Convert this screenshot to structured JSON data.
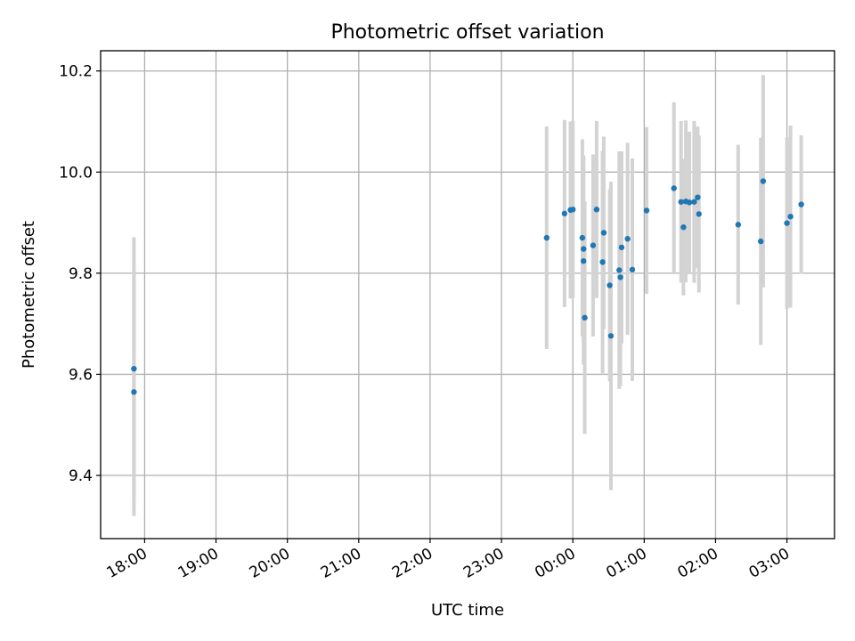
{
  "chart_data": {
    "type": "scatter",
    "title": "Photometric offset variation",
    "xlabel": "UTC time",
    "ylabel": "Photometric offset",
    "x_unit": "time (UTC)",
    "xlim": [
      "17:23",
      "03:40"
    ],
    "ylim": [
      9.275,
      10.24
    ],
    "grid": true,
    "x_ticks": [
      "18:00",
      "19:00",
      "20:00",
      "21:00",
      "22:00",
      "23:00",
      "00:00",
      "01:00",
      "02:00",
      "03:00"
    ],
    "y_ticks": [
      "9.4",
      "9.6",
      "9.8",
      "10.0",
      "10.2"
    ],
    "point_color": "#1f77b4",
    "errorbar_color": "#d3d3d3",
    "series": [
      {
        "points": [
          {
            "t": "17:51",
            "y": 9.611,
            "err": 0.26
          },
          {
            "t": "17:51",
            "y": 9.565,
            "err": 0.245
          },
          {
            "t": "23:38",
            "y": 9.87,
            "err": 0.22
          },
          {
            "t": "23:53",
            "y": 9.918,
            "err": 0.185
          },
          {
            "t": "23:58",
            "y": 9.925,
            "err": 0.175
          },
          {
            "t": "00:00",
            "y": 9.926,
            "err": 0.175
          },
          {
            "t": "00:08",
            "y": 9.87,
            "err": 0.195
          },
          {
            "t": "00:09",
            "y": 9.848,
            "err": 0.185
          },
          {
            "t": "00:09",
            "y": 9.824,
            "err": 0.205
          },
          {
            "t": "00:10",
            "y": 9.712,
            "err": 0.23
          },
          {
            "t": "00:17",
            "y": 9.855,
            "err": 0.18
          },
          {
            "t": "00:20",
            "y": 9.926,
            "err": 0.175
          },
          {
            "t": "00:25",
            "y": 9.822,
            "err": 0.22
          },
          {
            "t": "00:26",
            "y": 9.88,
            "err": 0.19
          },
          {
            "t": "00:31",
            "y": 9.776,
            "err": 0.19
          },
          {
            "t": "00:32",
            "y": 9.676,
            "err": 0.305
          },
          {
            "t": "00:39",
            "y": 9.806,
            "err": 0.235
          },
          {
            "t": "00:40",
            "y": 9.792,
            "err": 0.215
          },
          {
            "t": "00:41",
            "y": 9.851,
            "err": 0.19
          },
          {
            "t": "00:46",
            "y": 9.868,
            "err": 0.19
          },
          {
            "t": "00:50",
            "y": 9.807,
            "err": 0.22
          },
          {
            "t": "01:02",
            "y": 9.924,
            "err": 0.165
          },
          {
            "t": "01:25",
            "y": 9.968,
            "err": 0.17
          },
          {
            "t": "01:31",
            "y": 9.941,
            "err": 0.16
          },
          {
            "t": "01:33",
            "y": 9.891,
            "err": 0.135
          },
          {
            "t": "01:35",
            "y": 9.942,
            "err": 0.16
          },
          {
            "t": "01:38",
            "y": 9.94,
            "err": 0.14
          },
          {
            "t": "01:42",
            "y": 9.941,
            "err": 0.16
          },
          {
            "t": "01:45",
            "y": 9.95,
            "err": 0.14
          },
          {
            "t": "01:46",
            "y": 9.917,
            "err": 0.155
          },
          {
            "t": "02:19",
            "y": 9.896,
            "err": 0.158
          },
          {
            "t": "02:38",
            "y": 9.863,
            "err": 0.205
          },
          {
            "t": "02:40",
            "y": 9.982,
            "err": 0.21
          },
          {
            "t": "03:00",
            "y": 9.899,
            "err": 0.17
          },
          {
            "t": "03:03",
            "y": 9.912,
            "err": 0.18
          },
          {
            "t": "03:12",
            "y": 9.936,
            "err": 0.137
          }
        ]
      }
    ]
  }
}
